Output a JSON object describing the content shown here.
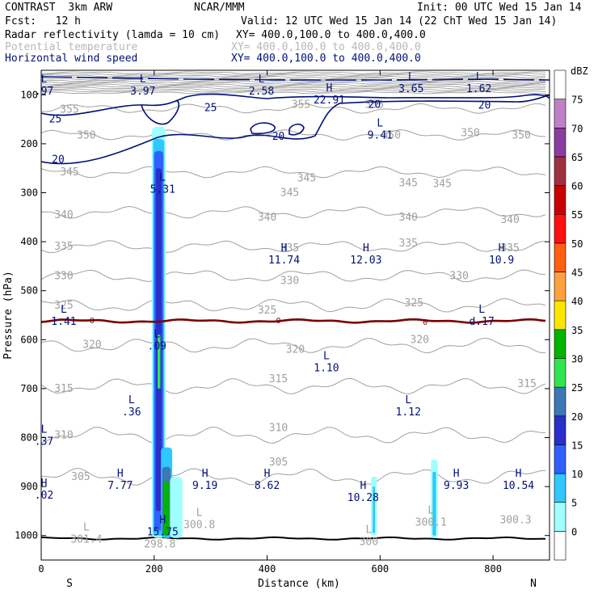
{
  "header": {
    "model": "CONTRAST  3km ARW",
    "org": "NCAR/MMM",
    "init": "Init: 00 UTC Wed 15 Jan 14",
    "fcst": "Fcst:   12 h",
    "valid": "Valid: 12 UTC Wed 15 Jan 14 (22 ChT Wed 15 Jan 14)",
    "field1": "Radar reflectivity (lamda = 10 cm)",
    "field1_xy": "XY= 400.0,100.0 to 400.0,400.0",
    "field2": "Potential temperature",
    "field2_xy": "XY= 400.0,100.0 to 400.0,400.0",
    "field3": "Horizontal wind speed",
    "field3_xy": "XY= 400.0,100.0 to 400.0,400.0"
  },
  "colors": {
    "theta": "#a0a0a0",
    "wind": "#00107a",
    "zero": "#7a0000",
    "hl": "#00107a"
  },
  "chart_data": {
    "type": "cross-section",
    "xlabel": "Distance (km)",
    "ylabel": "Pressure (hPa)",
    "xlim": [
      0,
      900
    ],
    "ylim": [
      1050,
      50
    ],
    "x_ticks": [
      0,
      200,
      400,
      600,
      800
    ],
    "y_ticks": [
      100,
      200,
      300,
      400,
      500,
      600,
      700,
      800,
      900,
      1000
    ],
    "x_end_labels": {
      "left": "S",
      "right": "N"
    },
    "colorbar": {
      "unit": "dBZ",
      "levels": [
        0,
        5,
        10,
        15,
        20,
        25,
        30,
        35,
        40,
        45,
        50,
        55,
        60,
        65,
        70,
        75
      ],
      "colors": [
        "#ffffff",
        "#a0ffff",
        "#30c8ff",
        "#3060ff",
        "#2830c8",
        "#3c78b4",
        "#30e650",
        "#00b400",
        "#ffe600",
        "#ffa040",
        "#ff6010",
        "#ff1010",
        "#c80000",
        "#a03040",
        "#8c3ca0",
        "#c080c8",
        "#ffffff"
      ]
    },
    "theta_labels": [
      {
        "x": 50,
        "p": 130,
        "v": "355"
      },
      {
        "x": 460,
        "p": 120,
        "v": "355"
      },
      {
        "x": 590,
        "p": 120,
        "v": "355"
      },
      {
        "x": 80,
        "p": 183,
        "v": "350"
      },
      {
        "x": 620,
        "p": 183,
        "v": "350"
      },
      {
        "x": 760,
        "p": 178,
        "v": "350"
      },
      {
        "x": 850,
        "p": 183,
        "v": "350"
      },
      {
        "x": 50,
        "p": 258,
        "v": "345"
      },
      {
        "x": 470,
        "p": 270,
        "v": "345"
      },
      {
        "x": 650,
        "p": 280,
        "v": "345"
      },
      {
        "x": 710,
        "p": 282,
        "v": "345"
      },
      {
        "x": 440,
        "p": 300,
        "v": "345"
      },
      {
        "x": 40,
        "p": 345,
        "v": "340"
      },
      {
        "x": 400,
        "p": 350,
        "v": "340"
      },
      {
        "x": 650,
        "p": 350,
        "v": "340"
      },
      {
        "x": 830,
        "p": 355,
        "v": "340"
      },
      {
        "x": 40,
        "p": 410,
        "v": "335"
      },
      {
        "x": 440,
        "p": 413,
        "v": "335"
      },
      {
        "x": 650,
        "p": 403,
        "v": "335"
      },
      {
        "x": 830,
        "p": 413,
        "v": "335"
      },
      {
        "x": 40,
        "p": 470,
        "v": "330"
      },
      {
        "x": 440,
        "p": 480,
        "v": "330"
      },
      {
        "x": 740,
        "p": 470,
        "v": "330"
      },
      {
        "x": 40,
        "p": 530,
        "v": "325"
      },
      {
        "x": 400,
        "p": 540,
        "v": "325"
      },
      {
        "x": 660,
        "p": 525,
        "v": "325"
      },
      {
        "x": 90,
        "p": 610,
        "v": "320"
      },
      {
        "x": 450,
        "p": 620,
        "v": "320"
      },
      {
        "x": 670,
        "p": 600,
        "v": "320"
      },
      {
        "x": 40,
        "p": 700,
        "v": "315"
      },
      {
        "x": 420,
        "p": 680,
        "v": "315"
      },
      {
        "x": 860,
        "p": 690,
        "v": "315"
      },
      {
        "x": 40,
        "p": 795,
        "v": "310"
      },
      {
        "x": 420,
        "p": 780,
        "v": "310"
      },
      {
        "x": 70,
        "p": 880,
        "v": "305"
      },
      {
        "x": 420,
        "p": 850,
        "v": "305"
      }
    ],
    "wind_labels": [
      {
        "x": 25,
        "p": 150,
        "v": "25"
      },
      {
        "x": 300,
        "p": 127,
        "v": "25"
      },
      {
        "x": 590,
        "p": 120,
        "v": "20"
      },
      {
        "x": 785,
        "p": 122,
        "v": "20"
      },
      {
        "x": 30,
        "p": 232,
        "v": "20"
      },
      {
        "x": 420,
        "p": 185,
        "v": "20"
      }
    ],
    "zero_labels": [
      {
        "x": 90,
        "p": 560,
        "v": "0"
      },
      {
        "x": 420,
        "p": 560,
        "v": "0"
      },
      {
        "x": 680,
        "p": 563,
        "v": "0"
      }
    ],
    "extrema": [
      {
        "t": "L",
        "x": 5,
        "p": 75,
        "v": ".97"
      },
      {
        "t": "L",
        "x": 180,
        "p": 75,
        "v": "3.97"
      },
      {
        "t": "L",
        "x": 390,
        "p": 75,
        "v": "2.58"
      },
      {
        "t": "H",
        "x": 510,
        "p": 93,
        "v": "22.91"
      },
      {
        "t": "L",
        "x": 655,
        "p": 70,
        "v": "3.65"
      },
      {
        "t": "L",
        "x": 775,
        "p": 70,
        "v": "1.62"
      },
      {
        "t": "L",
        "x": 600,
        "p": 165,
        "v": "9.41"
      },
      {
        "t": "L",
        "x": 215,
        "p": 275,
        "v": "5.31"
      },
      {
        "t": "H",
        "x": 430,
        "p": 420,
        "v": "11.74"
      },
      {
        "t": "H",
        "x": 575,
        "p": 420,
        "v": "12.03"
      },
      {
        "t": "H",
        "x": 815,
        "p": 420,
        "v": "10.9"
      },
      {
        "t": "L",
        "x": 40,
        "p": 545,
        "v": "1.41"
      },
      {
        "t": "L",
        "x": 780,
        "p": 545,
        "v": "d.17"
      },
      {
        "t": "L",
        "x": 205,
        "p": 595,
        "v": ".09"
      },
      {
        "t": "L",
        "x": 505,
        "p": 640,
        "v": "1.10"
      },
      {
        "t": "L",
        "x": 160,
        "p": 730,
        "v": ".36"
      },
      {
        "t": "L",
        "x": 650,
        "p": 730,
        "v": "1.12"
      },
      {
        "t": "L",
        "x": 5,
        "p": 790,
        "v": ".37"
      },
      {
        "t": "H",
        "x": 5,
        "p": 900,
        "v": ".02"
      },
      {
        "t": "H",
        "x": 140,
        "p": 880,
        "v": "7.77"
      },
      {
        "t": "H",
        "x": 290,
        "p": 880,
        "v": "9.19"
      },
      {
        "t": "H",
        "x": 400,
        "p": 880,
        "v": "8.62"
      },
      {
        "t": "H",
        "x": 570,
        "p": 905,
        "v": "10.28"
      },
      {
        "t": "H",
        "x": 735,
        "p": 880,
        "v": "9.93"
      },
      {
        "t": "H",
        "x": 845,
        "p": 880,
        "v": "10.54"
      },
      {
        "t": "H",
        "x": 215,
        "p": 975,
        "v": "15.75"
      }
    ],
    "gray_labels": [
      {
        "x": 80,
        "p": 990,
        "t": "L",
        "v": "301.4"
      },
      {
        "x": 280,
        "p": 960,
        "t": "L",
        "v": "300.8"
      },
      {
        "x": 840,
        "p": 950,
        "t": "",
        "v": "300.3"
      },
      {
        "x": 690,
        "p": 955,
        "t": "L",
        "v": "300.1"
      },
      {
        "x": 580,
        "p": 995,
        "t": "L",
        "v": "300"
      },
      {
        "x": 210,
        "p": 1000,
        "t": "",
        "v": "298.8"
      }
    ]
  }
}
